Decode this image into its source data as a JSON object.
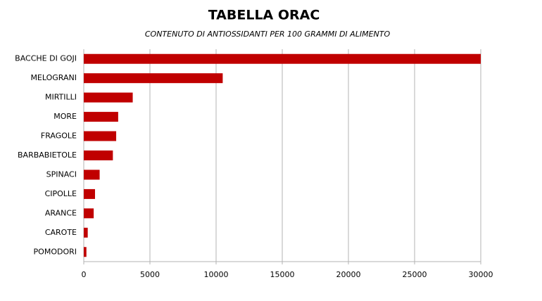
{
  "chart_data": {
    "type": "bar",
    "orientation": "horizontal",
    "title": "TABELLA ORAC",
    "subtitle": "CONTENUTO DI ANTIOSSIDANTI PER 100 GRAMMI DI ALIMENTO",
    "categories": [
      "BACCHE DI GOJI",
      "MELOGRANI",
      "MIRTILLI",
      "MORE",
      "FRAGOLE",
      "BARBABIETOLE",
      "SPINACI",
      "CIPOLLE",
      "ARANCE",
      "CAROTE",
      "POMODORI"
    ],
    "values": [
      30000,
      10500,
      3700,
      2600,
      2450,
      2200,
      1200,
      850,
      750,
      300,
      200
    ],
    "color": "#c00000",
    "xlim": [
      0,
      30000
    ],
    "xticks": [
      0,
      5000,
      10000,
      15000,
      20000,
      25000,
      30000
    ],
    "grid": true
  }
}
